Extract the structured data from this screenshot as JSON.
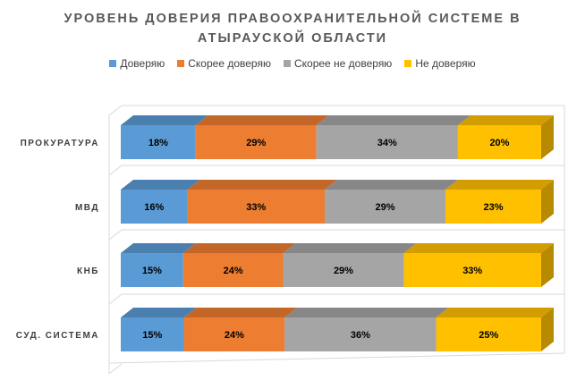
{
  "chart_data": {
    "type": "bar",
    "orientation": "horizontal",
    "stacked": true,
    "percent_stacked": true,
    "three_d": true,
    "title": [
      "УРОВЕНЬ ДОВЕРИЯ ПРАВООХРАНИТЕЛЬНОЙ СИСТЕМЕ В",
      "АТЫРАУСКОЙ ОБЛАСТИ"
    ],
    "legend_position": "top",
    "categories": [
      "ПРОКУРАТУРА",
      "МВД",
      "КНБ",
      "СУД. СИСТЕМА"
    ],
    "series": [
      {
        "name": "Доверяю",
        "color": "#5B9BD5",
        "values": [
          18,
          16,
          15,
          15
        ],
        "labels": [
          "18%",
          "16%",
          "15%",
          "15%"
        ]
      },
      {
        "name": "Скорее доверяю",
        "color": "#ED7D31",
        "values": [
          29,
          33,
          24,
          24
        ],
        "labels": [
          "29%",
          "33%",
          "24%",
          "24%"
        ]
      },
      {
        "name": "Скорее не доверяю",
        "color": "#A5A5A5",
        "values": [
          34,
          29,
          29,
          36
        ],
        "labels": [
          "34%",
          "29%",
          "29%",
          "36%"
        ]
      },
      {
        "name": "Не доверяю",
        "color": "#FFC000",
        "values": [
          20,
          23,
          33,
          25
        ],
        "labels": [
          "20%",
          "23%",
          "33%",
          "25%"
        ]
      }
    ]
  }
}
